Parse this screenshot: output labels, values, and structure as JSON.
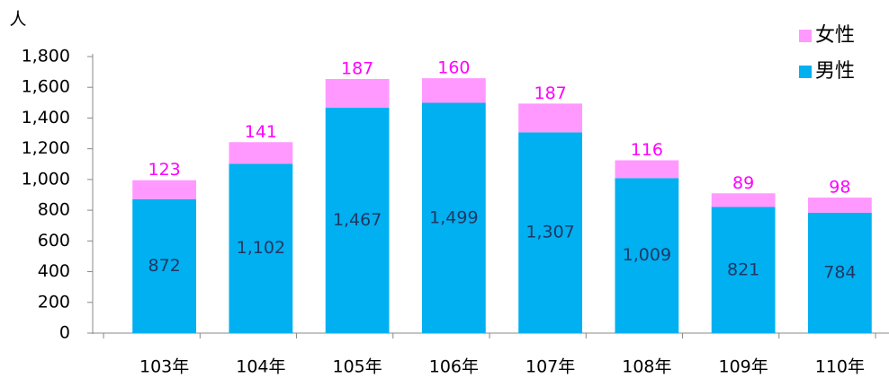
{
  "chart_data": {
    "type": "stacked_bar",
    "y_label": "人",
    "categories": [
      "103年",
      "104年",
      "105年",
      "106年",
      "107年",
      "108年",
      "109年",
      "110年"
    ],
    "series": [
      {
        "name": "男性",
        "color": "#00b0f0",
        "label_color": "#1f3864",
        "values": [
          872,
          1102,
          1467,
          1499,
          1307,
          1009,
          821,
          784
        ],
        "value_labels": [
          "872",
          "1,102",
          "1,467",
          "1,499",
          "1,307",
          "1,009",
          "821",
          "784"
        ]
      },
      {
        "name": "女性",
        "color": "#ff99ff",
        "label_color": "#ff00ff",
        "values": [
          123,
          141,
          187,
          160,
          187,
          116,
          89,
          98
        ]
      }
    ],
    "ylim": [
      0,
      1800
    ],
    "yticks": [
      0,
      200,
      400,
      600,
      800,
      {
        "value": 1000,
        "label": "1,000"
      },
      {
        "value": 1200,
        "label": "1,200"
      },
      {
        "value": 1400,
        "label": "1,400"
      },
      {
        "value": 1600,
        "label": "1,600"
      },
      {
        "value": 1800,
        "label": "1,800"
      }
    ],
    "legend": "top-right",
    "grid": false
  }
}
